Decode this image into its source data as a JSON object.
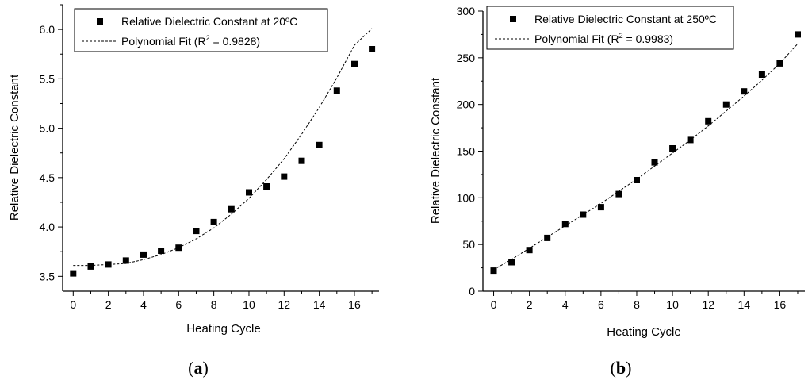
{
  "chart_data": [
    {
      "type": "scatter",
      "panel_label": "a",
      "xlabel": "Heating Cycle",
      "ylabel": "Relative Dielectric Constant",
      "xlim": [
        -0.6,
        17.4
      ],
      "ylim": [
        3.35,
        6.25
      ],
      "xticks": [
        0,
        2,
        4,
        6,
        8,
        10,
        12,
        14,
        16
      ],
      "xtick_labels": [
        "0",
        "2",
        "4",
        "6",
        "8",
        "10",
        "12",
        "14",
        "16"
      ],
      "yticks": [
        3.5,
        4.0,
        4.5,
        5.0,
        5.5,
        6.0
      ],
      "ytick_labels": [
        "3.5",
        "4.0",
        "4.5",
        "5.0",
        "5.5",
        "6.0"
      ],
      "legend": {
        "position": "top-left",
        "marker_label": "Relative Dielectric Constant at 20ºC",
        "fit_label_prefix": "Polynomial Fit (R",
        "fit_label_sup": "2",
        "fit_label_suffix": " = 0.9828)"
      },
      "series": [
        {
          "name": "Relative Dielectric Constant at 20ºC",
          "style": "square-marker",
          "x": [
            0,
            1,
            2,
            3,
            4,
            5,
            6,
            7,
            8,
            9,
            10,
            11,
            12,
            13,
            14,
            15,
            16,
            17
          ],
          "y": [
            3.53,
            3.6,
            3.62,
            3.66,
            3.72,
            3.76,
            3.79,
            3.96,
            4.05,
            4.18,
            4.35,
            4.41,
            4.51,
            4.67,
            4.83,
            5.38,
            5.65,
            5.8
          ]
        },
        {
          "name": "Polynomial Fit",
          "style": "dashed-line",
          "x": [
            0,
            1,
            2,
            3,
            4,
            5,
            6,
            7,
            8,
            9,
            10,
            11,
            12,
            13,
            14,
            15,
            16,
            17
          ],
          "y": [
            3.61,
            3.61,
            3.62,
            3.63,
            3.67,
            3.72,
            3.79,
            3.88,
            3.99,
            4.13,
            4.29,
            4.48,
            4.69,
            4.94,
            5.21,
            5.51,
            5.84,
            6.01
          ]
        }
      ]
    },
    {
      "type": "scatter",
      "panel_label": "b",
      "xlabel": "Heating Cycle",
      "ylabel": "Relative Dielectric Constant",
      "xlim": [
        -0.6,
        17.4
      ],
      "ylim": [
        0,
        300
      ],
      "xticks": [
        0,
        2,
        4,
        6,
        8,
        10,
        12,
        14,
        16
      ],
      "xtick_labels": [
        "0",
        "2",
        "4",
        "6",
        "8",
        "10",
        "12",
        "14",
        "16"
      ],
      "yticks": [
        0,
        50,
        100,
        150,
        200,
        250,
        300
      ],
      "ytick_labels": [
        "0",
        "50",
        "100",
        "150",
        "200",
        "250",
        "300"
      ],
      "legend": {
        "position": "top-left",
        "marker_label": "Relative Dielectric Constant at 250ºC",
        "fit_label_prefix": "Polynomial Fit (R",
        "fit_label_sup": "2",
        "fit_label_suffix": " = 0.9983)"
      },
      "series": [
        {
          "name": "Relative Dielectric Constant at 250ºC",
          "style": "square-marker",
          "x": [
            0,
            1,
            2,
            3,
            4,
            5,
            6,
            7,
            8,
            9,
            10,
            11,
            12,
            13,
            14,
            15,
            16,
            17
          ],
          "y": [
            22,
            31,
            44,
            57,
            72,
            82,
            90,
            104,
            119,
            138,
            153,
            162,
            182,
            200,
            214,
            232,
            244,
            275
          ]
        },
        {
          "name": "Polynomial Fit",
          "style": "dashed-line",
          "x": [
            0,
            1,
            2,
            3,
            4,
            5,
            6,
            7,
            8,
            9,
            10,
            11,
            12,
            13,
            14,
            15,
            16,
            17
          ],
          "y": [
            23,
            34,
            46,
            58,
            70,
            82,
            94,
            107,
            120,
            134,
            148,
            162,
            177,
            193,
            209,
            226,
            244,
            265
          ]
        }
      ]
    }
  ]
}
